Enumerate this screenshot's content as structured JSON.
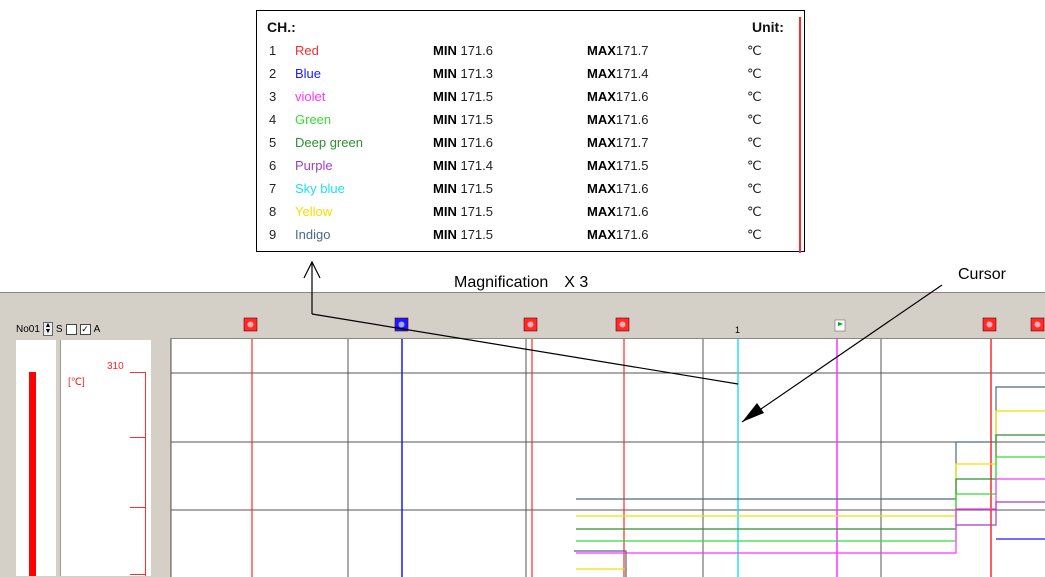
{
  "panel": {
    "ch_header": "CH.:",
    "unit_header": "Unit:",
    "min_label": "MIN",
    "max_label": "MAX",
    "channels": [
      {
        "num": "1",
        "name": "Red",
        "min": "171.6",
        "max": "171.7",
        "unit": "℃",
        "color": "#ff2a2a"
      },
      {
        "num": "2",
        "name": "Blue",
        "min": "171.3",
        "max": "171.4",
        "unit": "℃",
        "color": "#1a1aff"
      },
      {
        "num": "3",
        "name": "violet",
        "min": "171.5",
        "max": "171.6",
        "unit": "℃",
        "color": "#ff33ff"
      },
      {
        "num": "4",
        "name": "Green",
        "min": "171.5",
        "max": "171.6",
        "unit": "℃",
        "color": "#33dd33"
      },
      {
        "num": "5",
        "name": "Deep green",
        "min": "171.6",
        "max": "171.7",
        "unit": "℃",
        "color": "#2f8f2f"
      },
      {
        "num": "6",
        "name": "Purple",
        "min": "171.4",
        "max": "171.5",
        "unit": "℃",
        "color": "#a040c0"
      },
      {
        "num": "7",
        "name": "Sky blue",
        "min": "171.5",
        "max": "171.6",
        "unit": "℃",
        "color": "#22e0f0"
      },
      {
        "num": "8",
        "name": "Yellow",
        "min": "171.5",
        "max": "171.6",
        "unit": "℃",
        "color": "#f0e000"
      },
      {
        "num": "9",
        "name": "Indigo",
        "min": "171.5",
        "max": "171.6",
        "unit": "℃",
        "color": "#4a6a80"
      }
    ]
  },
  "captions": {
    "magnification": "Magnification　X 3",
    "cursor": "Cursor"
  },
  "screen": {
    "channel_id": "No01",
    "s_label": "S",
    "a_label": "A",
    "unit": "[℃]",
    "scale_top": "310",
    "cursor_number": "1",
    "accent_red": "#ff0000",
    "icons": [
      "spin-up-icon",
      "spin-down-icon",
      "checkbox-icon",
      "event-marker-icon",
      "flag-icon"
    ]
  }
}
